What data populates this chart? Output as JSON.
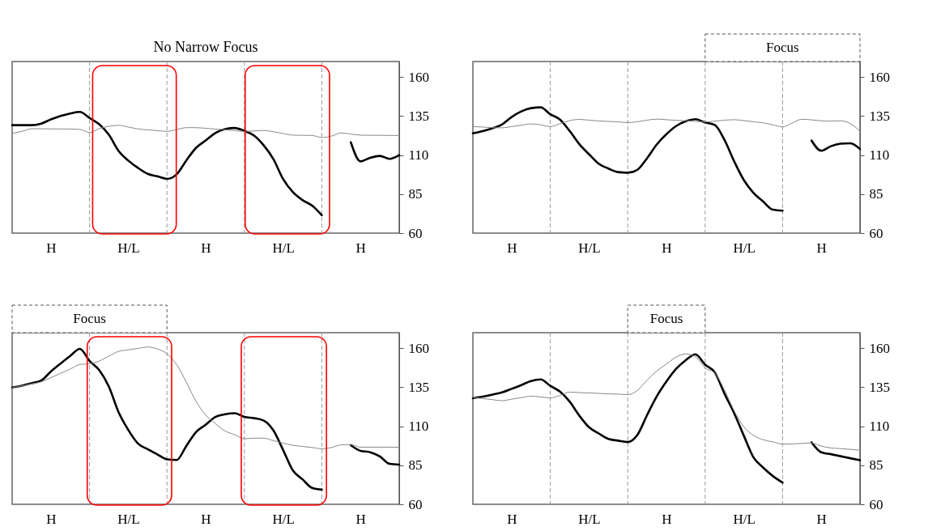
{
  "chart_data": [
    {
      "type": "line",
      "title": "No Narrow Focus",
      "categories": [
        null,
        null,
        null,
        null,
        "H",
        null,
        null,
        null,
        null,
        null,
        null,
        null,
        "H/L",
        null,
        null,
        null,
        null,
        null,
        null,
        null,
        "H",
        null,
        null,
        null,
        null,
        null,
        null,
        null,
        "H/L",
        null,
        null,
        null,
        null,
        null,
        null,
        null,
        "H",
        null,
        null,
        null,
        null
      ],
      "ylim": [
        60,
        170
      ],
      "yticks": [
        60,
        85,
        110,
        135,
        160
      ],
      "series": [
        {
          "color": "#000000",
          "values": [
            129.2,
            129.2,
            129.2,
            130.2,
            132.9,
            135.1,
            136.7,
            137.7,
            133.8,
            129.8,
            123,
            112.7,
            106.5,
            101.8,
            98,
            96.4,
            94.8,
            97.7,
            106.6,
            114.6,
            119.4,
            124.2,
            126.7,
            127.4,
            125.5,
            122.5,
            116.2,
            107.4,
            94.7,
            86.4,
            81.2,
            77.6,
            71.5,
            null,
            null,
            118.2,
            106,
            108.3,
            109.5,
            107.6,
            110
          ]
        },
        {
          "color": "#888888",
          "values": [
            123.9,
            125.2,
            126.9,
            126.9,
            126.8,
            126.8,
            126.7,
            126.5,
            124.5,
            127,
            128.5,
            129.1,
            128,
            126.8,
            126.2,
            125.7,
            125.2,
            126.4,
            127.6,
            127.6,
            127.2,
            126.7,
            126.3,
            125.7,
            125.2,
            125.5,
            125.8,
            125,
            123.8,
            122.8,
            122.7,
            122.6,
            121.3,
            122.2,
            124.2,
            123.5,
            122.8,
            122.7,
            122.7,
            122.6,
            122.6
          ]
        }
      ],
      "grid": "x"
    },
    {
      "type": "line",
      "annotations": [
        "Focus"
      ],
      "categories": [
        null,
        null,
        null,
        null,
        "H",
        null,
        null,
        null,
        null,
        null,
        null,
        null,
        "H/L",
        null,
        null,
        null,
        null,
        null,
        null,
        null,
        "H",
        null,
        null,
        null,
        null,
        null,
        null,
        null,
        "H/L",
        null,
        null,
        null,
        null,
        null,
        null,
        null,
        "H",
        null,
        null,
        null,
        null
      ],
      "ylim": [
        60,
        170
      ],
      "yticks": [
        60,
        85,
        110,
        135,
        160
      ],
      "series": [
        {
          "color": "#000000",
          "values": [
            124,
            125.4,
            127.2,
            129.6,
            134.4,
            138,
            140.1,
            140.6,
            136.2,
            132.8,
            125.5,
            117,
            110.6,
            104.5,
            101.4,
            99.1,
            98.7,
            100.6,
            108,
            116.8,
            123.4,
            128.6,
            131.7,
            133,
            130.9,
            129.3,
            119.7,
            106,
            94,
            85.8,
            80.2,
            75,
            74.4,
            null,
            null,
            119.3,
            112.8,
            115.7,
            117.3,
            117.6,
            113.9
          ]
        },
        {
          "color": "#888888",
          "values": [
            128.3,
            128,
            127.6,
            127.5,
            128.3,
            129.2,
            130,
            129.4,
            128.3,
            130.2,
            132.1,
            132.9,
            132.4,
            131.9,
            131.6,
            131.3,
            130.9,
            131.4,
            132.4,
            133.1,
            132.7,
            132.3,
            132,
            131.6,
            131.2,
            131.8,
            132.4,
            132.7,
            132.1,
            131.4,
            130.7,
            129.4,
            128.1,
            130.6,
            133,
            132.6,
            132,
            131.8,
            132,
            130.2,
            125.3
          ]
        }
      ],
      "grid": "x"
    },
    {
      "type": "line",
      "annotations": [
        "Focus"
      ],
      "categories": [
        null,
        null,
        null,
        null,
        "H",
        null,
        null,
        null,
        null,
        null,
        null,
        null,
        "H/L",
        null,
        null,
        null,
        null,
        null,
        null,
        null,
        "H",
        null,
        null,
        null,
        null,
        null,
        null,
        null,
        "H/L",
        null,
        null,
        null,
        null,
        null,
        null,
        null,
        "H",
        null,
        null,
        null,
        null
      ],
      "ylim": [
        60,
        170
      ],
      "yticks": [
        60,
        85,
        110,
        135,
        160
      ],
      "series": [
        {
          "color": "#000000",
          "values": [
            135,
            136,
            137.6,
            139.3,
            145.1,
            150.2,
            155.1,
            159.6,
            151.9,
            146,
            135.4,
            119,
            107.7,
            99,
            95.3,
            92,
            88.8,
            88.4,
            97.4,
            106.3,
            111,
            116,
            117.7,
            118.4,
            116,
            115.2,
            113.6,
            107.3,
            94.8,
            81.8,
            76,
            70.5,
            69.4,
            null,
            null,
            97.9,
            94.3,
            93.4,
            90.7,
            85.9,
            85.4
          ]
        },
        {
          "color": "#888888",
          "values": [
            135,
            135.9,
            137.2,
            138.5,
            141.2,
            143.9,
            146.7,
            149.6,
            150.1,
            151.8,
            155,
            158,
            159,
            159.9,
            160.8,
            159.6,
            156.5,
            149.5,
            138.3,
            126,
            117.2,
            111.7,
            107,
            104.6,
            102,
            102.4,
            102.4,
            100.8,
            99.3,
            97.8,
            97.1,
            96.4,
            95.6,
            96.4,
            98.1,
            98.3,
            96.6,
            96.6,
            96.6,
            96.6,
            96.6
          ]
        }
      ],
      "grid": "x"
    },
    {
      "type": "line",
      "annotations": [
        "Focus"
      ],
      "categories": [
        null,
        null,
        null,
        null,
        "H",
        null,
        null,
        null,
        null,
        null,
        null,
        null,
        "H/L",
        null,
        null,
        null,
        null,
        null,
        null,
        null,
        "H",
        null,
        null,
        null,
        null,
        null,
        null,
        null,
        "H/L",
        null,
        null,
        null,
        null,
        null,
        null,
        null,
        "H",
        null,
        null,
        null,
        null
      ],
      "ylim": [
        60,
        170
      ],
      "yticks": [
        60,
        85,
        110,
        135,
        160
      ],
      "series": [
        {
          "color": "#000000",
          "values": [
            128,
            129,
            130.3,
            131.7,
            134,
            136.4,
            139,
            140,
            135.9,
            132.2,
            125.8,
            116.8,
            109.4,
            105.4,
            101.9,
            100.8,
            99.9,
            104.5,
            117.2,
            129.2,
            138.7,
            146.8,
            152.4,
            156.1,
            149.5,
            144.5,
            130.9,
            118.4,
            103.9,
            90,
            83.5,
            78.1,
            73.9,
            null,
            null,
            99.7,
            93.3,
            92.1,
            90.8,
            89.5,
            88.3
          ]
        },
        {
          "color": "#888888",
          "values": [
            128.5,
            127.8,
            127.1,
            126.4,
            127.4,
            128.4,
            129.3,
            128.8,
            128.2,
            129.8,
            131.9,
            131.6,
            131.4,
            131.1,
            130.8,
            130.6,
            130.3,
            133,
            139.6,
            145.4,
            149.9,
            154.4,
            156.4,
            154.7,
            147.4,
            144.1,
            133.3,
            119.9,
            109.6,
            104.2,
            101.4,
            100,
            98.6,
            98.7,
            99,
            99.3,
            97.3,
            96.1,
            95.7,
            95.2,
            94.7
          ]
        }
      ],
      "grid": "x"
    }
  ]
}
